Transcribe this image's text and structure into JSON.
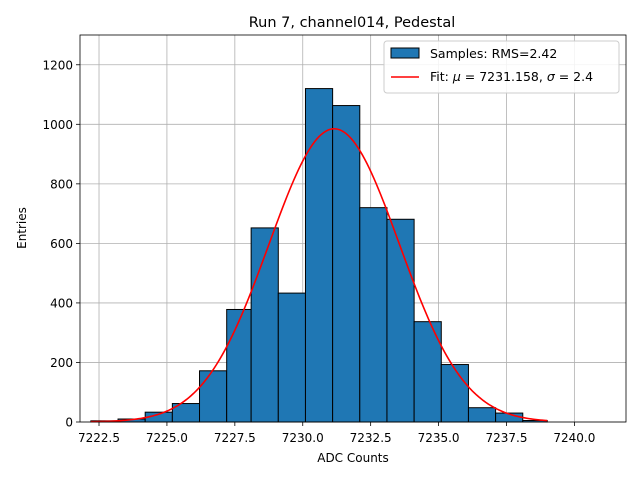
{
  "chart_data": {
    "type": "bar",
    "title": "Run 7, channel014, Pedestal",
    "xlabel": "ADC Counts",
    "ylabel": "Entries",
    "xlim": [
      7221.8,
      7241.9
    ],
    "ylim": [
      0,
      1300
    ],
    "x_ticks": [
      "7222.5",
      "7225.0",
      "7227.5",
      "7230.0",
      "7232.5",
      "7235.0",
      "7237.5",
      "7240.0"
    ],
    "x_tick_values": [
      7222.5,
      7225.0,
      7227.5,
      7230.0,
      7232.5,
      7235.0,
      7237.5,
      7240.0
    ],
    "y_ticks": [
      "0",
      "200",
      "400",
      "600",
      "800",
      "1000",
      "1200"
    ],
    "y_tick_values": [
      0,
      200,
      400,
      600,
      800,
      1000,
      1200
    ],
    "grid": true,
    "legend_position": "top-right",
    "bar_color": "#1f77b4",
    "fit_color": "#ff0000",
    "histogram": {
      "name": "Samples: RMS=2.42",
      "bins": [
        {
          "x0": 7222.2,
          "x1": 7223.2,
          "count": 4
        },
        {
          "x0": 7223.2,
          "x1": 7224.2,
          "count": 10
        },
        {
          "x0": 7224.2,
          "x1": 7225.2,
          "count": 33
        },
        {
          "x0": 7225.2,
          "x1": 7226.2,
          "count": 62
        },
        {
          "x0": 7226.2,
          "x1": 7227.2,
          "count": 172
        },
        {
          "x0": 7227.2,
          "x1": 7228.1,
          "count": 378
        },
        {
          "x0": 7228.1,
          "x1": 7229.1,
          "count": 652
        },
        {
          "x0": 7229.1,
          "x1": 7230.1,
          "count": 433
        },
        {
          "x0": 7230.1,
          "x1": 7231.1,
          "count": 1120
        },
        {
          "x0": 7231.1,
          "x1": 7232.1,
          "count": 1063
        },
        {
          "x0": 7232.1,
          "x1": 7233.1,
          "count": 720
        },
        {
          "x0": 7233.1,
          "x1": 7234.1,
          "count": 681
        },
        {
          "x0": 7234.1,
          "x1": 7235.1,
          "count": 337
        },
        {
          "x0": 7235.1,
          "x1": 7236.1,
          "count": 193
        },
        {
          "x0": 7236.1,
          "x1": 7237.1,
          "count": 48
        },
        {
          "x0": 7237.1,
          "x1": 7238.1,
          "count": 30
        },
        {
          "x0": 7238.1,
          "x1": 7239.0,
          "count": 5
        }
      ]
    },
    "fit": {
      "name_prefix": "Fit: ",
      "mu_symbol": "μ",
      "mu_text": " = 7231.158, ",
      "sigma_symbol": "σ",
      "sigma_text": " = 2.4",
      "mu": 7231.158,
      "sigma": 2.4,
      "amplitude": 985,
      "x_range": [
        7222.2,
        7239.0
      ]
    }
  }
}
